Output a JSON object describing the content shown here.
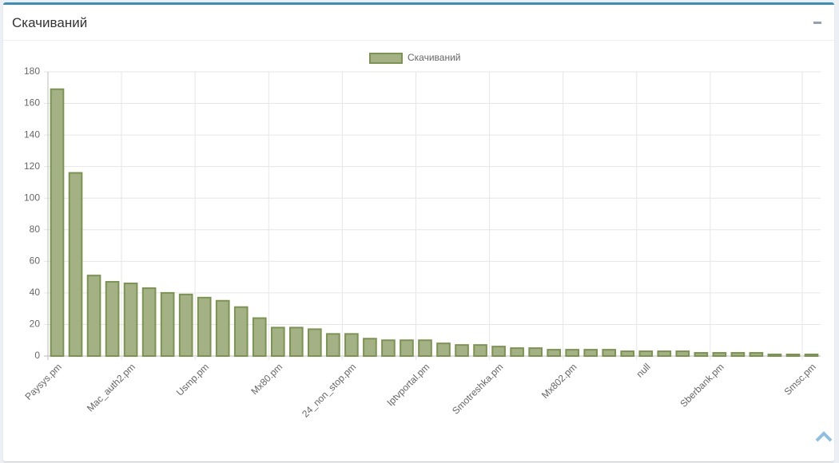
{
  "chart_data": {
    "type": "bar",
    "title": "Скачиваний",
    "series": [
      {
        "name": "Скачиваний",
        "color": "#a3b184",
        "border": "#7c9450",
        "values": [
          169,
          116,
          51,
          47,
          46,
          43,
          40,
          39,
          37,
          35,
          31,
          24,
          18,
          18,
          17,
          14,
          14,
          11,
          10,
          10,
          10,
          8,
          7,
          7,
          6,
          5,
          5,
          4,
          4,
          4,
          4,
          3,
          3,
          3,
          3,
          2,
          2,
          2,
          2,
          1,
          1,
          1
        ]
      }
    ],
    "categories": [
      "Paysys.pm",
      null,
      null,
      null,
      "Mac_auth2.pm",
      null,
      null,
      null,
      "Usmp.pm",
      null,
      null,
      null,
      "Mx80.pm",
      null,
      null,
      null,
      "24_non_stop.pm",
      null,
      null,
      null,
      "Iptvportal.pm",
      null,
      null,
      null,
      "Smotreshka.pm",
      null,
      null,
      null,
      "Mx802.pm",
      null,
      null,
      null,
      "null",
      null,
      null,
      null,
      "Sberbank.pm",
      null,
      null,
      null,
      null,
      "Smsc.pm"
    ],
    "ylim": [
      0,
      180
    ],
    "yticks": [
      0,
      20,
      40,
      60,
      80,
      100,
      120,
      140,
      160,
      180
    ],
    "grid": true,
    "legend": "top"
  }
}
